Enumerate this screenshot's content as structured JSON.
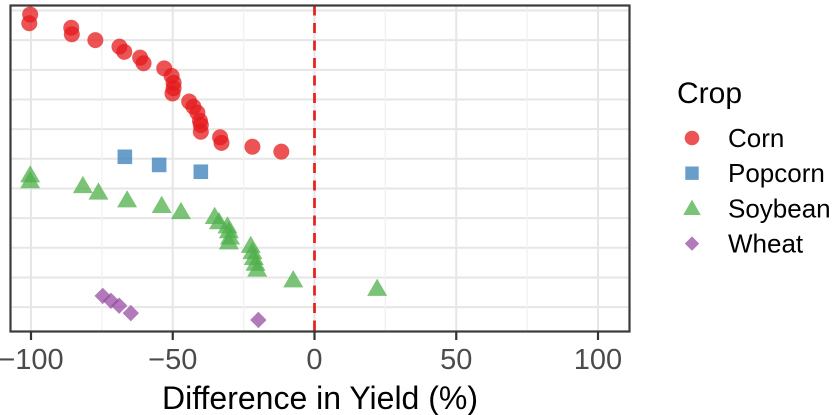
{
  "chart_data": {
    "type": "scatter",
    "title": "",
    "xlabel": "Difference in Yield (%)",
    "ylabel": "",
    "xlim": [
      -107,
      111
    ],
    "x_ticks": [
      {
        "value": -100,
        "label": "−100"
      },
      {
        "value": -50,
        "label": "−50"
      },
      {
        "value": 0,
        "label": "0"
      },
      {
        "value": 50,
        "label": "50"
      },
      {
        "value": 100,
        "label": "100"
      }
    ],
    "x_minor_gridlines": [
      -75,
      -25,
      25,
      75
    ],
    "y_axis": "hidden; y values below are fractions of panel height from top (rows ordered by crop and effect size)",
    "grid": "on",
    "legend_position": "right",
    "legend_title": "Crop",
    "reference_line": {
      "x": 0,
      "style": "dashed",
      "color": "#e52620"
    },
    "marker_opacity": 0.75,
    "colors": {
      "corn": "#E41A1C",
      "popcorn": "#377EB8",
      "soybean": "#4DAF4A",
      "wheat": "#984EA3",
      "grid_major": "#e6e6e6",
      "grid_minor": "#f2f2f2",
      "panel_border": "#3b3b3b",
      "tick_mark": "#333333",
      "tick_label": "#4b4b4b",
      "axis_title": "#000000"
    },
    "series": [
      {
        "name": "Corn",
        "marker": "circle",
        "color": "#E41A1C",
        "points": [
          [
            -100.3,
            0.026
          ],
          [
            -100.6,
            0.053
          ],
          [
            -85.8,
            0.067
          ],
          [
            -85.6,
            0.087
          ],
          [
            -77.3,
            0.105
          ],
          [
            -68.8,
            0.125
          ],
          [
            -67.1,
            0.141
          ],
          [
            -61.5,
            0.159
          ],
          [
            -60.3,
            0.176
          ],
          [
            -53.0,
            0.192
          ],
          [
            -50.4,
            0.215
          ],
          [
            -49.7,
            0.236
          ],
          [
            -49.7,
            0.253
          ],
          [
            -50.1,
            0.269
          ],
          [
            -44.2,
            0.294
          ],
          [
            -42.7,
            0.31
          ],
          [
            -41.3,
            0.328
          ],
          [
            -40.4,
            0.353
          ],
          [
            -40.1,
            0.366
          ],
          [
            -40.1,
            0.387
          ],
          [
            -33.3,
            0.404
          ],
          [
            -32.8,
            0.421
          ],
          [
            -21.9,
            0.433
          ],
          [
            -11.7,
            0.448
          ]
        ]
      },
      {
        "name": "Popcorn",
        "marker": "square",
        "color": "#377EB8",
        "points": [
          [
            -66.9,
            0.464
          ],
          [
            -54.8,
            0.489
          ],
          [
            -40.1,
            0.51
          ]
        ]
      },
      {
        "name": "Soybean",
        "marker": "triangle",
        "color": "#4DAF4A",
        "points": [
          [
            -100.3,
            0.52
          ],
          [
            -100.3,
            0.538
          ],
          [
            -81.7,
            0.553
          ],
          [
            -76.2,
            0.573
          ],
          [
            -66.1,
            0.597
          ],
          [
            -53.9,
            0.614
          ],
          [
            -47.1,
            0.633
          ],
          [
            -35.2,
            0.648
          ],
          [
            -33.7,
            0.664
          ],
          [
            -30.7,
            0.677
          ],
          [
            -30.2,
            0.692
          ],
          [
            -29.8,
            0.711
          ],
          [
            -30.2,
            0.726
          ],
          [
            -22.5,
            0.737
          ],
          [
            -21.9,
            0.756
          ],
          [
            -21.4,
            0.774
          ],
          [
            -20.8,
            0.792
          ],
          [
            -20.2,
            0.81
          ],
          [
            -7.5,
            0.843
          ],
          [
            22.1,
            0.869
          ]
        ]
      },
      {
        "name": "Wheat",
        "marker": "diamond",
        "color": "#984EA3",
        "points": [
          [
            -74.7,
            0.892
          ],
          [
            -71.8,
            0.907
          ],
          [
            -68.9,
            0.922
          ],
          [
            -64.8,
            0.945
          ],
          [
            -19.8,
            0.966
          ]
        ]
      }
    ]
  }
}
